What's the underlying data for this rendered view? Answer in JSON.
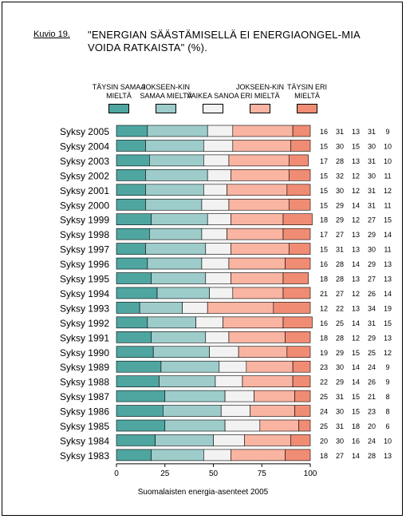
{
  "figure": {
    "label": "Kuvio 19.",
    "title": "\"ENERGIAN SÄÄSTÄMISELLÄ EI ENERGIAONGEL-MIA VOIDA RATKAISTA\" (%).",
    "source": "Suomalaisten energia-asenteet 2005"
  },
  "legend": [
    {
      "label": "TÄYSIN SAMAA MIELTÄ",
      "color": "#4fa6a1"
    },
    {
      "label": "JOKSEEN-KIN SAMAA MIELTÄ",
      "color": "#9dcccb"
    },
    {
      "label": "VAIKEA SANOA",
      "color": "#f2f2f2"
    },
    {
      "label": "JOKSEEN-KIN ERI MIELTÄ",
      "color": "#f9b4a2"
    },
    {
      "label": "TÄYSIN ERI MIELTÄ",
      "color": "#f08c74"
    }
  ],
  "chart_data": {
    "type": "bar",
    "orientation": "horizontal",
    "stacked": true,
    "categories": [
      "Syksy 2005",
      "Syksy 2004",
      "Syksy 2003",
      "Syksy 2002",
      "Syksy 2001",
      "Syksy 2000",
      "Syksy 1999",
      "Syksy 1998",
      "Syksy 1997",
      "Syksy 1996",
      "Syksy 1995",
      "Syksy 1994",
      "Syksy 1993",
      "Syksy 1992",
      "Syksy 1991",
      "Syksy 1990",
      "Syksy 1989",
      "Syksy 1988",
      "Syksy 1987",
      "Syksy 1986",
      "Syksy 1985",
      "Syksy 1984",
      "Syksy 1983"
    ],
    "series": [
      {
        "name": "TÄYSIN SAMAA MIELTÄ",
        "values": [
          16,
          15,
          17,
          15,
          15,
          15,
          18,
          17,
          15,
          16,
          18,
          21,
          12,
          16,
          18,
          19,
          23,
          22,
          25,
          24,
          25,
          20,
          18
        ]
      },
      {
        "name": "JOKSEEN-KIN SAMAA MIELTÄ",
        "values": [
          31,
          30,
          28,
          32,
          30,
          29,
          29,
          27,
          31,
          28,
          28,
          27,
          22,
          25,
          28,
          29,
          30,
          29,
          31,
          30,
          31,
          30,
          27
        ]
      },
      {
        "name": "VAIKEA SANOA",
        "values": [
          13,
          15,
          13,
          12,
          12,
          14,
          12,
          13,
          13,
          14,
          13,
          12,
          13,
          14,
          12,
          15,
          14,
          14,
          15,
          15,
          18,
          16,
          14
        ]
      },
      {
        "name": "JOKSEEN-KIN ERI MIELTÄ",
        "values": [
          31,
          30,
          31,
          30,
          31,
          31,
          27,
          29,
          30,
          29,
          27,
          26,
          34,
          31,
          29,
          25,
          24,
          26,
          21,
          23,
          20,
          24,
          28
        ]
      },
      {
        "name": "TÄYSIN ERI MIELTÄ",
        "values": [
          9,
          10,
          10,
          11,
          12,
          11,
          15,
          14,
          11,
          13,
          13,
          14,
          19,
          15,
          13,
          12,
          9,
          9,
          8,
          8,
          6,
          10,
          13
        ]
      }
    ],
    "xticks": [
      0,
      25,
      50,
      75,
      100
    ],
    "xlim": [
      0,
      100
    ],
    "xlabel": "",
    "ylabel": "",
    "legend_position": "top",
    "data_labels_position": "right"
  }
}
